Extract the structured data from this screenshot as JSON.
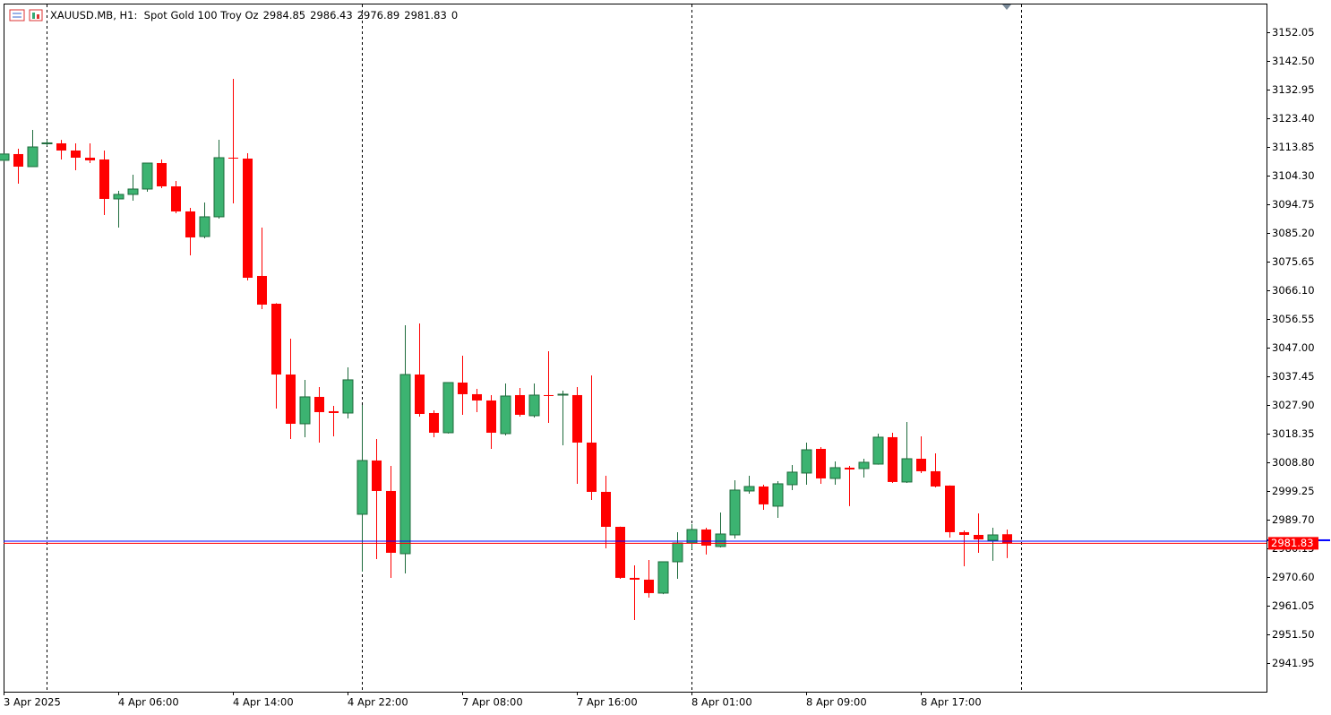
{
  "chart_data": {
    "type": "candlestick",
    "symbol": "XAUUSD.MB, H1:  Spot Gold 100 Troy Oz",
    "volume": 0,
    "categories": [
      "3 Apr 2025",
      null,
      null,
      null,
      null,
      null,
      null,
      null,
      "4 Apr 06:00",
      null,
      null,
      null,
      null,
      null,
      null,
      null,
      "4 Apr 14:00",
      null,
      null,
      null,
      null,
      null,
      null,
      null,
      "4 Apr 22:00",
      null,
      null,
      null,
      null,
      null,
      null,
      null,
      "7 Apr 08:00",
      null,
      null,
      null,
      null,
      null,
      null,
      null,
      "7 Apr 16:00",
      null,
      null,
      null,
      null,
      null,
      null,
      null,
      "8 Apr 01:00",
      null,
      null,
      null,
      null,
      null,
      null,
      null,
      "8 Apr 09:00",
      null,
      null,
      null,
      null,
      null,
      null,
      null,
      "8 Apr 17:00",
      null,
      null,
      null,
      null,
      null,
      null
    ],
    "open": [
      3109.4,
      3111.47,
      3107.29,
      3115.0,
      3115.05,
      3112.66,
      3110.27,
      3109.67,
      3096.54,
      3098.04,
      3099.83,
      3108.48,
      3100.72,
      3092.37,
      3084.01,
      3090.58,
      3110.27,
      3109.97,
      3070.88,
      3061.63,
      3038.05,
      3021.64,
      3030.6,
      3025.82,
      3025.22,
      2991.5,
      3009.41,
      2999.26,
      2978.37,
      3038.05,
      3025.22,
      3018.66,
      3035.37,
      3031.49,
      3029.4,
      3018.36,
      3031.19,
      3024.33,
      3031.19,
      3031.19,
      3031.19,
      3015.38,
      2998.96,
      2987.32,
      2970.32,
      2969.72,
      2965.24,
      2975.68,
      2981.95,
      2986.43,
      2980.76,
      2984.63,
      2999.26,
      3000.75,
      2994.2,
      3001.35,
      3005.23,
      3013.28,
      3003.44,
      3007.02,
      3006.72,
      3008.21,
      3017.17,
      3002.25,
      3010.0,
      3005.83,
      3001.05,
      2985.53,
      2984.63,
      2982.84,
      2984.85
    ],
    "high": [
      3111.8,
      3113.26,
      3119.52,
      3116.24,
      3116.2,
      3115.05,
      3115.05,
      3112.66,
      3099.23,
      3104.6,
      3108.6,
      3109.67,
      3102.51,
      3093.56,
      3095.35,
      3116.24,
      3136.53,
      3111.76,
      3086.99,
      3061.8,
      3049.99,
      3036.27,
      3033.88,
      3027.61,
      3040.44,
      3027.91,
      3016.57,
      3007.62,
      3054.47,
      3055.07,
      3026.12,
      3035.5,
      3044.32,
      3033.28,
      3031.19,
      3035.07,
      3033.58,
      3035.07,
      3045.81,
      3032.69,
      3033.88,
      3037.76,
      3004.33,
      2987.4,
      2974.49,
      2976.28,
      2975.8,
      2985.53,
      2988.22,
      2987.02,
      2992.1,
      3002.84,
      3004.33,
      3001.35,
      3002.54,
      3007.92,
      3015.38,
      3013.88,
      3009.11,
      3007.62,
      3010.0,
      3018.36,
      3018.66,
      3022.24,
      3017.47,
      3011.8,
      3001.1,
      2986.13,
      2991.8,
      2987.02,
      2986.43
    ],
    "low": [
      3109.0,
      3101.62,
      3107.29,
      3114.15,
      3109.67,
      3106.1,
      3108.48,
      3091.17,
      3086.99,
      3095.95,
      3098.93,
      3100.13,
      3091.77,
      3077.74,
      3083.41,
      3089.98,
      3095.05,
      3069.39,
      3059.84,
      3026.71,
      3016.57,
      3017.17,
      3015.38,
      3017.47,
      3023.43,
      2972.4,
      2976.58,
      2970.32,
      2971.81,
      3024.03,
      3017.17,
      3018.4,
      3024.63,
      3025.52,
      3013.29,
      3017.76,
      3024.03,
      3023.73,
      3021.94,
      3014.47,
      3001.65,
      2996.27,
      2980.16,
      2970.0,
      2956.29,
      2963.75,
      2964.9,
      2970.02,
      2979.86,
      2978.08,
      2980.46,
      2983.45,
      2998.37,
      2993.0,
      2990.31,
      2999.56,
      3001.35,
      3001.65,
      3001.35,
      2994.2,
      3003.74,
      3008.0,
      3001.95,
      3001.95,
      3005.23,
      3000.45,
      2983.74,
      2974.19,
      2978.67,
      2976.0,
      2976.89
    ],
    "close": [
      3111.5,
      3107.29,
      3113.85,
      3115.2,
      3112.66,
      3110.27,
      3109.38,
      3096.54,
      3098.04,
      3099.83,
      3108.48,
      3100.72,
      3092.37,
      3083.71,
      3090.58,
      3110.27,
      3109.97,
      3070.28,
      3061.33,
      3038.05,
      3021.64,
      3030.6,
      3025.52,
      3025.22,
      3036.27,
      3009.41,
      2999.26,
      2978.67,
      3038.05,
      3024.92,
      3018.66,
      3035.37,
      3031.49,
      3029.4,
      3018.66,
      3030.89,
      3024.63,
      3031.19,
      3030.89,
      3031.49,
      3015.38,
      2998.96,
      2987.32,
      2970.32,
      2969.72,
      2965.24,
      2975.68,
      2981.95,
      2986.43,
      2981.06,
      2984.93,
      2999.56,
      3000.75,
      2994.79,
      3001.65,
      3005.53,
      3012.98,
      3003.44,
      3007.02,
      3006.42,
      3008.81,
      3017.17,
      3002.25,
      3010.0,
      3005.83,
      3000.75,
      2985.53,
      2984.63,
      2983.14,
      2984.63,
      2981.83
    ],
    "up_color": "#3cb371",
    "up_edge": "#1e6b3c",
    "down_color": "#ff0000",
    "ask": 2982.55,
    "ask_color": "#0000ff",
    "ylim": [
      2932.4,
      3161.6
    ],
    "yticks": [
      3152.05,
      {
        "value": 3142.5,
        "label": "3142.50"
      },
      3132.95,
      {
        "value": 3123.4,
        "label": "3123.40"
      },
      3113.85,
      {
        "value": 3104.3,
        "label": "3104.30"
      },
      3094.75,
      {
        "value": 3085.2,
        "label": "3085.20"
      },
      3075.65,
      {
        "value": 3066.1,
        "label": "3066.10"
      },
      3056.55,
      {
        "value": 3047,
        "label": "3047.00"
      },
      3037.45,
      {
        "value": 3027.9,
        "label": "3027.90"
      },
      3018.35,
      {
        "value": 3008.8,
        "label": "3008.80"
      },
      2999.25,
      {
        "value": 2989.7,
        "label": "2989.70"
      },
      2980.15,
      {
        "value": 2970.6,
        "label": "2970.60"
      },
      2961.05,
      {
        "value": 2951.5,
        "label": "2951.50"
      },
      2941.95
    ]
  }
}
